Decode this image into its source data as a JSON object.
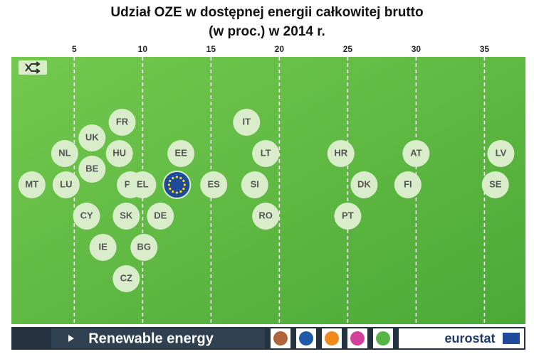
{
  "chart_data": {
    "type": "scatter",
    "title": "Udział OZE w dostępnej energii całkowitej brutto",
    "subtitle": "(w proc.) w  2014 r.",
    "categories": [
      "LU",
      "PL",
      "BE",
      "HU",
      "NL",
      "CY",
      null,
      "SK",
      "UK",
      "EE",
      "SI",
      "DK",
      "HR",
      "FR",
      "MT",
      "IE",
      "CZ",
      "DE",
      "ES",
      "LT",
      "FI",
      "SE",
      "BG",
      "RO",
      "IT",
      "PT",
      "AT",
      "LV",
      "EL"
    ],
    "x": [
      4.4,
      9.1,
      6.3,
      8.3,
      4.3,
      5.9,
      12.5,
      8.8,
      6.3,
      12.8,
      18.2,
      26.2,
      24.5,
      8.5,
      1.9,
      7.1,
      8.8,
      11.3,
      15.2,
      19.0,
      29.4,
      35.8,
      10.1,
      19.0,
      17.6,
      25.0,
      30.0,
      36.2,
      10.0
    ],
    "xlim": [
      0.4,
      38
    ],
    "xticks": [
      5,
      10,
      15,
      20,
      25,
      30,
      35
    ],
    "grid": true,
    "color": "#d9edcb"
  },
  "ui": {
    "section": "Renewable energy",
    "brand": "eurostat"
  }
}
